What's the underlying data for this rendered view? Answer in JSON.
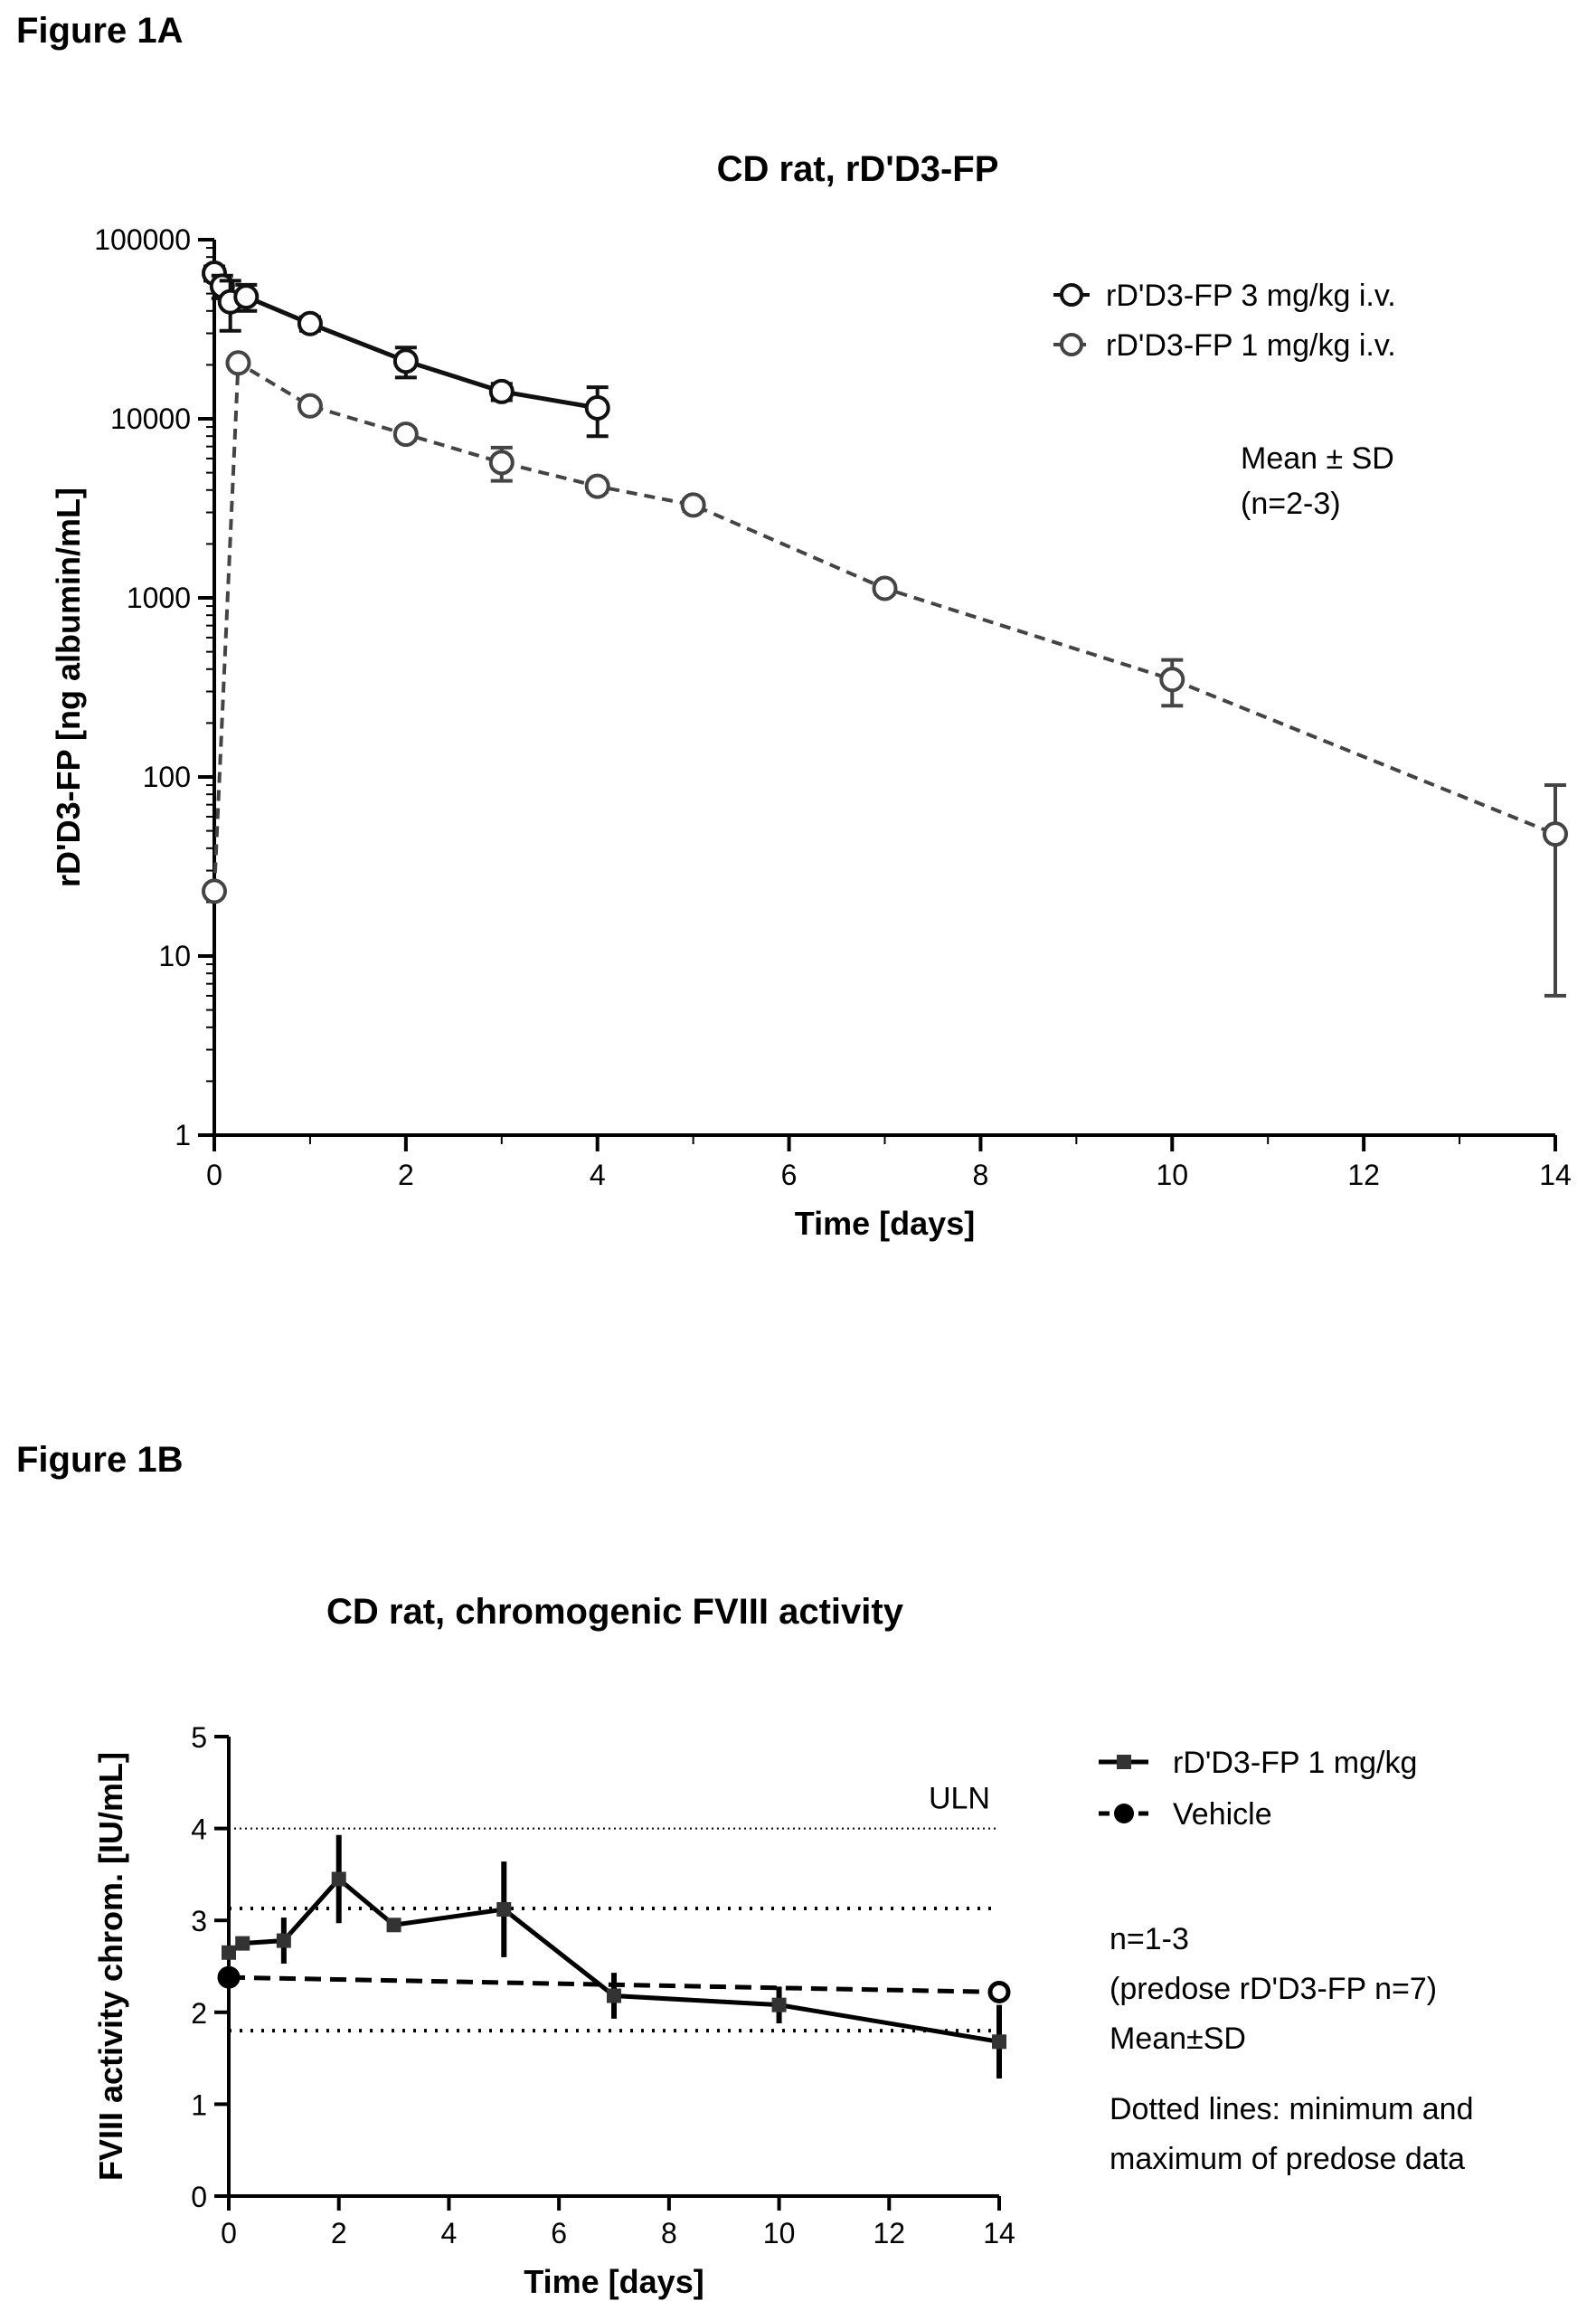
{
  "figure_a_label": "Figure 1A",
  "figure_b_label": "Figure 1B",
  "chart_data": [
    {
      "id": "figA",
      "type": "scatter",
      "title": "CD rat, rD'D3-FP",
      "xlabel": "Time [days]",
      "ylabel": "rD'D3-FP [ng albumin/mL]",
      "xlim": [
        0,
        14
      ],
      "ylim": [
        1,
        100000
      ],
      "yscale": "log",
      "xticks": [
        "0",
        "2",
        "4",
        "6",
        "8",
        "10",
        "12",
        "14"
      ],
      "yticks": [
        "1",
        "10",
        "100",
        "1000",
        "10000",
        "100000"
      ],
      "legend_position": "top-right",
      "annotations": [
        "Mean ± SD",
        "(n=2-3)"
      ],
      "series": [
        {
          "name": "rD'D3-FP 3 mg/kg i.v.",
          "line": "solid",
          "marker": "open-circle",
          "x": [
            0,
            0.083,
            0.167,
            0.333,
            1,
            2,
            3,
            4
          ],
          "y": [
            65000,
            55000,
            45000,
            48000,
            34000,
            21000,
            14200,
            11500
          ],
          "err": [
            6000,
            8000,
            14000,
            8000,
            3000,
            4000,
            1500,
            3500
          ]
        },
        {
          "name": "rD'D3-FP 1 mg/kg i.v.",
          "line": "dashed",
          "marker": "open-circle",
          "x": [
            0,
            0.25,
            1,
            2,
            3,
            4,
            5,
            7,
            10,
            14
          ],
          "y": [
            23,
            20500,
            11800,
            8200,
            5700,
            4200,
            3300,
            1130,
            350,
            48
          ],
          "err": [
            0,
            1000,
            800,
            600,
            1200,
            300,
            250,
            80,
            100,
            42
          ]
        }
      ]
    },
    {
      "id": "figB",
      "type": "line",
      "title": "CD rat, chromogenic FVIII activity",
      "xlabel": "Time [days]",
      "ylabel": "FVIII activity chrom. [IU/mL]",
      "xlim": [
        0,
        14
      ],
      "ylim": [
        0,
        5
      ],
      "xticks": [
        "0",
        "2",
        "4",
        "6",
        "8",
        "10",
        "12",
        "14"
      ],
      "yticks": [
        "0",
        "1",
        "2",
        "3",
        "4",
        "5"
      ],
      "legend_position": "right",
      "reference_lines": [
        {
          "label": "ULN",
          "y": 4.0,
          "style": "fine-dotted"
        },
        {
          "label": "",
          "y": 3.13,
          "style": "dotted"
        },
        {
          "label": "",
          "y": 1.8,
          "style": "dotted"
        }
      ],
      "annotations": [
        "n=1-3",
        "(predose rD'D3-FP n=7)",
        "Mean±SD",
        "Dotted lines: minimum and",
        "maximum of predose data"
      ],
      "series": [
        {
          "name": "rD'D3-FP 1 mg/kg",
          "line": "solid",
          "marker": "square",
          "x": [
            0,
            0.25,
            1,
            2,
            3,
            5,
            7,
            10,
            14
          ],
          "y": [
            2.65,
            2.75,
            2.78,
            3.45,
            2.95,
            3.12,
            2.18,
            2.08,
            1.68
          ],
          "err": [
            0.05,
            0.05,
            0.25,
            0.48,
            0.03,
            0.52,
            0.25,
            0.2,
            0.4
          ]
        },
        {
          "name": "Vehicle",
          "line": "dashed",
          "marker": "filled-circle",
          "x": [
            0,
            14
          ],
          "y": [
            2.38,
            2.22
          ],
          "err": [
            0,
            0
          ]
        }
      ]
    }
  ]
}
